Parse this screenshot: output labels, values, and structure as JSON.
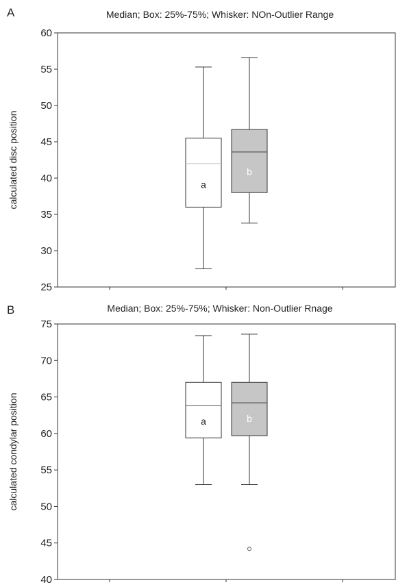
{
  "chart_data": [
    {
      "panel_label": "A",
      "title": "Median; Box: 25%-75%; Whisker: NOn-Outlier Range",
      "type": "box",
      "ylabel": "calculated disc position",
      "ylim": [
        25,
        60
      ],
      "yticks": [
        25,
        30,
        35,
        40,
        45,
        50,
        55,
        60
      ],
      "grid": false,
      "boxes": [
        {
          "label": "a",
          "whisker_low": 27.5,
          "q1": 36.0,
          "median": 42.0,
          "q3": 45.5,
          "whisker_high": 55.3,
          "outliers": [],
          "fill": "#ffffff",
          "median_color": "#cccccc",
          "label_color": "#222222"
        },
        {
          "label": "b",
          "whisker_low": 33.8,
          "q1": 38.0,
          "median": 43.6,
          "q3": 46.7,
          "whisker_high": 56.6,
          "outliers": [],
          "fill": "#c6c6c6",
          "median_color": "#555555",
          "label_color": "#ffffff"
        }
      ]
    },
    {
      "panel_label": "B",
      "title": "Median; Box: 25%-75%; Whisker: Non-Outlier Rnage",
      "type": "box",
      "ylabel": "calculated condylar position",
      "ylim": [
        40,
        75
      ],
      "yticks": [
        40,
        45,
        50,
        55,
        60,
        65,
        70,
        75
      ],
      "grid": false,
      "boxes": [
        {
          "label": "a",
          "whisker_low": 53.0,
          "q1": 59.4,
          "median": 63.8,
          "q3": 67.0,
          "whisker_high": 73.4,
          "outliers": [],
          "fill": "#ffffff",
          "median_color": "#777777",
          "label_color": "#222222"
        },
        {
          "label": "b",
          "whisker_low": 53.0,
          "q1": 59.7,
          "median": 64.2,
          "q3": 67.0,
          "whisker_high": 73.6,
          "outliers": [
            44.2
          ],
          "fill": "#c6c6c6",
          "median_color": "#555555",
          "label_color": "#ffffff"
        }
      ]
    }
  ]
}
